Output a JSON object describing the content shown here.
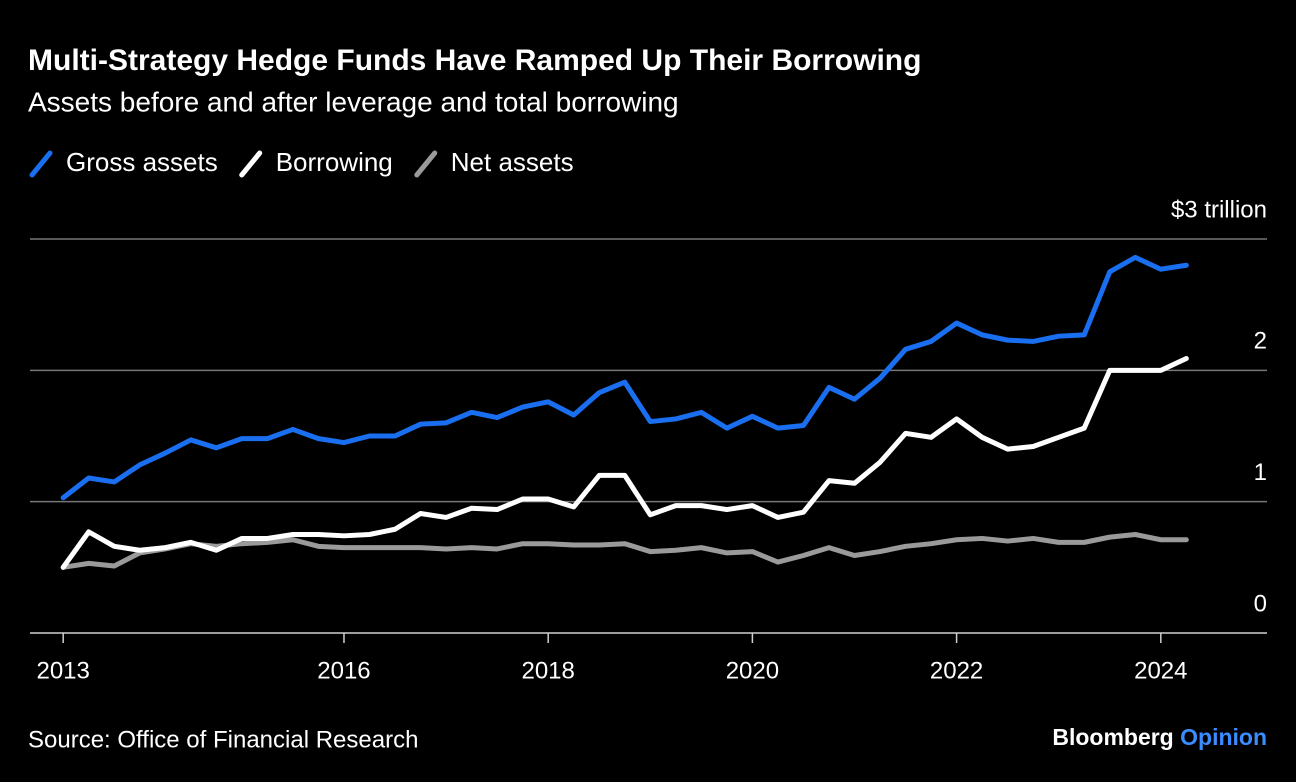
{
  "chart_data": {
    "type": "line",
    "title": "Multi-Strategy Hedge Funds Have Ramped Up Their Borrowing",
    "subtitle": "Assets before and after leverage and total borrowing",
    "source": "Source: Office of Financial Research",
    "branding": {
      "name": "Bloomberg",
      "suffix": "Opinion"
    },
    "x": [
      2013.25,
      2013.5,
      2013.75,
      2014,
      2014.25,
      2014.5,
      2014.75,
      2015,
      2015.25,
      2015.5,
      2015.75,
      2016,
      2016.25,
      2016.5,
      2016.75,
      2017,
      2017.25,
      2017.5,
      2017.75,
      2018,
      2018.25,
      2018.5,
      2018.75,
      2019,
      2019.25,
      2019.5,
      2019.75,
      2020,
      2020.25,
      2020.5,
      2020.75,
      2021,
      2021.25,
      2021.5,
      2021.75,
      2022,
      2022.25,
      2022.5,
      2022.75,
      2023,
      2023.25,
      2023.5,
      2023.75,
      2024,
      2024.25
    ],
    "series": [
      {
        "name": "Gross assets",
        "color": "#1a6ff0",
        "values": [
          1.03,
          1.18,
          1.15,
          1.28,
          1.37,
          1.47,
          1.41,
          1.48,
          1.48,
          1.55,
          1.48,
          1.45,
          1.5,
          1.5,
          1.59,
          1.6,
          1.68,
          1.64,
          1.72,
          1.76,
          1.66,
          1.83,
          1.91,
          1.61,
          1.63,
          1.68,
          1.56,
          1.65,
          1.56,
          1.58,
          1.87,
          1.78,
          1.94,
          2.16,
          2.22,
          2.36,
          2.27,
          2.23,
          2.22,
          2.26,
          2.27,
          2.75,
          2.86,
          2.77,
          2.8
        ]
      },
      {
        "name": "Borrowing",
        "color": "#ffffff",
        "values": [
          0.5,
          0.77,
          0.66,
          0.63,
          0.65,
          0.69,
          0.63,
          0.72,
          0.72,
          0.75,
          0.75,
          0.74,
          0.75,
          0.79,
          0.91,
          0.88,
          0.95,
          0.94,
          1.02,
          1.02,
          0.96,
          1.2,
          1.2,
          0.9,
          0.97,
          0.97,
          0.94,
          0.97,
          0.88,
          0.92,
          1.16,
          1.14,
          1.3,
          1.52,
          1.49,
          1.63,
          1.49,
          1.4,
          1.42,
          1.49,
          1.56,
          2.0,
          2.0,
          2.0,
          2.09
        ]
      },
      {
        "name": "Net assets",
        "color": "#9a9a9a",
        "values": [
          0.5,
          0.53,
          0.51,
          0.61,
          0.64,
          0.68,
          0.66,
          0.68,
          0.69,
          0.71,
          0.66,
          0.65,
          0.65,
          0.65,
          0.65,
          0.64,
          0.65,
          0.64,
          0.68,
          0.68,
          0.67,
          0.67,
          0.68,
          0.62,
          0.63,
          0.65,
          0.61,
          0.62,
          0.54,
          0.59,
          0.65,
          0.59,
          0.62,
          0.66,
          0.68,
          0.71,
          0.72,
          0.7,
          0.72,
          0.69,
          0.69,
          0.73,
          0.75,
          0.71,
          0.71
        ]
      }
    ],
    "xlim": [
      2012.925,
      2025.04
    ],
    "xticks": [
      {
        "value": 2013.25,
        "label": "2013"
      },
      2016,
      2018,
      2020,
      2022,
      2024
    ],
    "ylim": [
      0,
      3
    ],
    "yticks": [
      0,
      1,
      2,
      {
        "value": 3,
        "label": "$3 trillion"
      }
    ],
    "grid": true
  }
}
